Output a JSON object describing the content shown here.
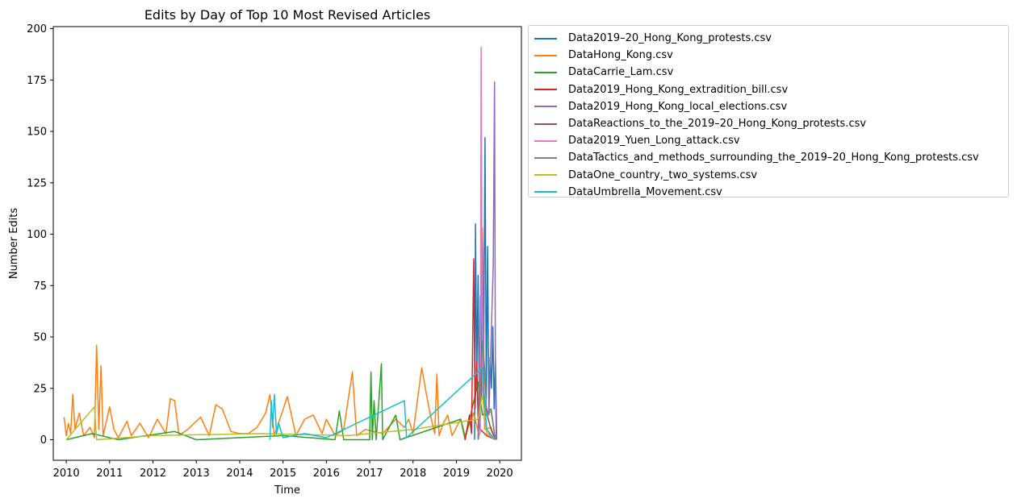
{
  "chart_data": {
    "type": "line",
    "title": "Edits by Day of Top 10 Most Revised Articles",
    "xlabel": "Time",
    "ylabel": "Number Edits",
    "xlim": [
      2009.7,
      2020.5
    ],
    "ylim": [
      -10,
      201
    ],
    "x_ticks": [
      "2010",
      "2011",
      "2012",
      "2013",
      "2014",
      "2015",
      "2016",
      "2017",
      "2018",
      "2019",
      "2020"
    ],
    "y_ticks": [
      "0",
      "25",
      "50",
      "75",
      "100",
      "125",
      "150",
      "175",
      "200"
    ],
    "grid": false,
    "legend_position": "outside-right-top",
    "series": [
      {
        "name": "Data2019–20_Hong_Kong_protests.csv",
        "color": "#1f77b4",
        "points": [
          [
            2019.42,
            0
          ],
          [
            2019.44,
            105
          ],
          [
            2019.47,
            30
          ],
          [
            2019.5,
            80
          ],
          [
            2019.53,
            10
          ],
          [
            2019.55,
            70
          ],
          [
            2019.57,
            20
          ],
          [
            2019.6,
            95
          ],
          [
            2019.63,
            40
          ],
          [
            2019.66,
            147
          ],
          [
            2019.69,
            20
          ],
          [
            2019.72,
            94
          ],
          [
            2019.75,
            15
          ],
          [
            2019.78,
            40
          ],
          [
            2019.81,
            25
          ],
          [
            2019.84,
            55
          ],
          [
            2019.87,
            15
          ],
          [
            2019.9,
            40
          ],
          [
            2019.93,
            0
          ]
        ]
      },
      {
        "name": "DataHong_Kong.csv",
        "color": "#ff7f0e",
        "points": [
          [
            2009.95,
            11
          ],
          [
            2010.0,
            2
          ],
          [
            2010.05,
            8
          ],
          [
            2010.1,
            3
          ],
          [
            2010.15,
            22
          ],
          [
            2010.2,
            5
          ],
          [
            2010.3,
            13
          ],
          [
            2010.4,
            2
          ],
          [
            2010.55,
            6
          ],
          [
            2010.65,
            1
          ],
          [
            2010.7,
            46
          ],
          [
            2010.75,
            5
          ],
          [
            2010.8,
            36
          ],
          [
            2010.85,
            2
          ],
          [
            2011.0,
            16
          ],
          [
            2011.1,
            5
          ],
          [
            2011.2,
            1
          ],
          [
            2011.4,
            9
          ],
          [
            2011.5,
            2
          ],
          [
            2011.7,
            8
          ],
          [
            2011.9,
            1
          ],
          [
            2012.1,
            10
          ],
          [
            2012.3,
            3
          ],
          [
            2012.4,
            20
          ],
          [
            2012.5,
            19
          ],
          [
            2012.6,
            2
          ],
          [
            2012.8,
            5
          ],
          [
            2013.1,
            11
          ],
          [
            2013.3,
            2
          ],
          [
            2013.45,
            17
          ],
          [
            2013.6,
            15
          ],
          [
            2013.8,
            4
          ],
          [
            2014.0,
            3
          ],
          [
            2014.2,
            3
          ],
          [
            2014.4,
            6
          ],
          [
            2014.6,
            13
          ],
          [
            2014.7,
            22
          ],
          [
            2014.8,
            2
          ],
          [
            2015.1,
            21
          ],
          [
            2015.3,
            2
          ],
          [
            2015.5,
            10
          ],
          [
            2015.7,
            12
          ],
          [
            2015.9,
            3
          ],
          [
            2016.0,
            10
          ],
          [
            2016.2,
            2
          ],
          [
            2016.4,
            5
          ],
          [
            2016.6,
            33
          ],
          [
            2016.7,
            2
          ],
          [
            2016.9,
            5
          ],
          [
            2017.1,
            4
          ],
          [
            2017.3,
            3
          ],
          [
            2017.6,
            10
          ],
          [
            2017.8,
            6
          ],
          [
            2017.9,
            10
          ],
          [
            2018.0,
            3
          ],
          [
            2018.2,
            35
          ],
          [
            2018.3,
            23
          ],
          [
            2018.4,
            12
          ],
          [
            2018.5,
            3
          ],
          [
            2018.55,
            32
          ],
          [
            2018.6,
            2
          ],
          [
            2018.7,
            8
          ],
          [
            2018.8,
            12
          ],
          [
            2018.9,
            2
          ],
          [
            2019.0,
            6
          ],
          [
            2019.1,
            10
          ],
          [
            2019.2,
            2
          ],
          [
            2019.4,
            13
          ],
          [
            2019.5,
            4
          ],
          [
            2019.6,
            103
          ],
          [
            2019.65,
            5
          ],
          [
            2019.8,
            6
          ],
          [
            2019.9,
            0
          ]
        ]
      },
      {
        "name": "DataCarrie_Lam.csv",
        "color": "#2ca02c",
        "points": [
          [
            2010.0,
            0
          ],
          [
            2010.6,
            3
          ],
          [
            2011.2,
            0
          ],
          [
            2012.5,
            4
          ],
          [
            2013.0,
            0
          ],
          [
            2015.0,
            2
          ],
          [
            2016.2,
            0
          ],
          [
            2016.3,
            14
          ],
          [
            2016.4,
            0
          ],
          [
            2017.0,
            0
          ],
          [
            2017.03,
            33
          ],
          [
            2017.06,
            0
          ],
          [
            2017.1,
            19
          ],
          [
            2017.15,
            0
          ],
          [
            2017.27,
            37
          ],
          [
            2017.3,
            0
          ],
          [
            2017.6,
            12
          ],
          [
            2017.7,
            0
          ],
          [
            2019.1,
            10
          ],
          [
            2019.2,
            0
          ],
          [
            2019.5,
            28
          ],
          [
            2019.6,
            12
          ],
          [
            2019.8,
            15
          ],
          [
            2019.9,
            0
          ]
        ]
      },
      {
        "name": "Data2019_Hong_Kong_extradition_bill.csv",
        "color": "#d62728",
        "points": [
          [
            2019.2,
            0
          ],
          [
            2019.3,
            12
          ],
          [
            2019.35,
            3
          ],
          [
            2019.4,
            88
          ],
          [
            2019.43,
            15
          ],
          [
            2019.47,
            38
          ],
          [
            2019.5,
            10
          ],
          [
            2019.55,
            5
          ],
          [
            2019.7,
            2
          ],
          [
            2019.9,
            0
          ]
        ]
      },
      {
        "name": "Data2019_Hong_Kong_local_elections.csv",
        "color": "#9467bd",
        "points": [
          [
            2019.5,
            0
          ],
          [
            2019.6,
            97
          ],
          [
            2019.63,
            20
          ],
          [
            2019.75,
            12
          ],
          [
            2019.85,
            85
          ],
          [
            2019.88,
            174
          ],
          [
            2019.9,
            28
          ],
          [
            2019.92,
            0
          ]
        ]
      },
      {
        "name": "DataReactions_to_the_2019–20_Hong_Kong_protests.csv",
        "color": "#8c564b",
        "points": [
          [
            2019.5,
            0
          ],
          [
            2019.55,
            20
          ],
          [
            2019.6,
            35
          ],
          [
            2019.65,
            10
          ],
          [
            2019.7,
            13
          ],
          [
            2019.8,
            5
          ],
          [
            2019.9,
            0
          ]
        ]
      },
      {
        "name": "Data2019_Yuen_Long_attack.csv",
        "color": "#e377c2",
        "points": [
          [
            2019.5,
            0
          ],
          [
            2019.55,
            4
          ],
          [
            2019.57,
            191
          ],
          [
            2019.6,
            25
          ],
          [
            2019.65,
            8
          ],
          [
            2019.75,
            3
          ],
          [
            2019.9,
            0
          ]
        ]
      },
      {
        "name": "DataTactics_and_methods_surrounding_the_2019–20_Hong_Kong_protests.csv",
        "color": "#7f7f7f",
        "points": [
          [
            2019.5,
            0
          ],
          [
            2019.6,
            48
          ],
          [
            2019.65,
            35
          ],
          [
            2019.7,
            12
          ],
          [
            2019.8,
            14
          ],
          [
            2019.9,
            0
          ]
        ]
      },
      {
        "name": "DataOne_country,_two_systems.csv",
        "color": "#bcbd22",
        "points": [
          [
            2010.0,
            0
          ],
          [
            2010.65,
            16
          ],
          [
            2010.7,
            0
          ],
          [
            2012.0,
            2
          ],
          [
            2014.5,
            3
          ],
          [
            2016.5,
            2
          ],
          [
            2018.0,
            5
          ],
          [
            2019.5,
            10
          ],
          [
            2019.6,
            22
          ],
          [
            2019.7,
            3
          ],
          [
            2019.9,
            0
          ]
        ]
      },
      {
        "name": "DataUmbrella_Movement.csv",
        "color": "#17becf",
        "points": [
          [
            2014.7,
            0
          ],
          [
            2014.73,
            19
          ],
          [
            2014.76,
            6
          ],
          [
            2014.8,
            22
          ],
          [
            2014.85,
            3
          ],
          [
            2014.9,
            8
          ],
          [
            2015.0,
            1
          ],
          [
            2015.5,
            3
          ],
          [
            2016.0,
            1
          ],
          [
            2017.8,
            19
          ],
          [
            2017.85,
            1
          ],
          [
            2019.6,
            35
          ],
          [
            2019.7,
            5
          ],
          [
            2019.9,
            0
          ]
        ]
      }
    ]
  }
}
